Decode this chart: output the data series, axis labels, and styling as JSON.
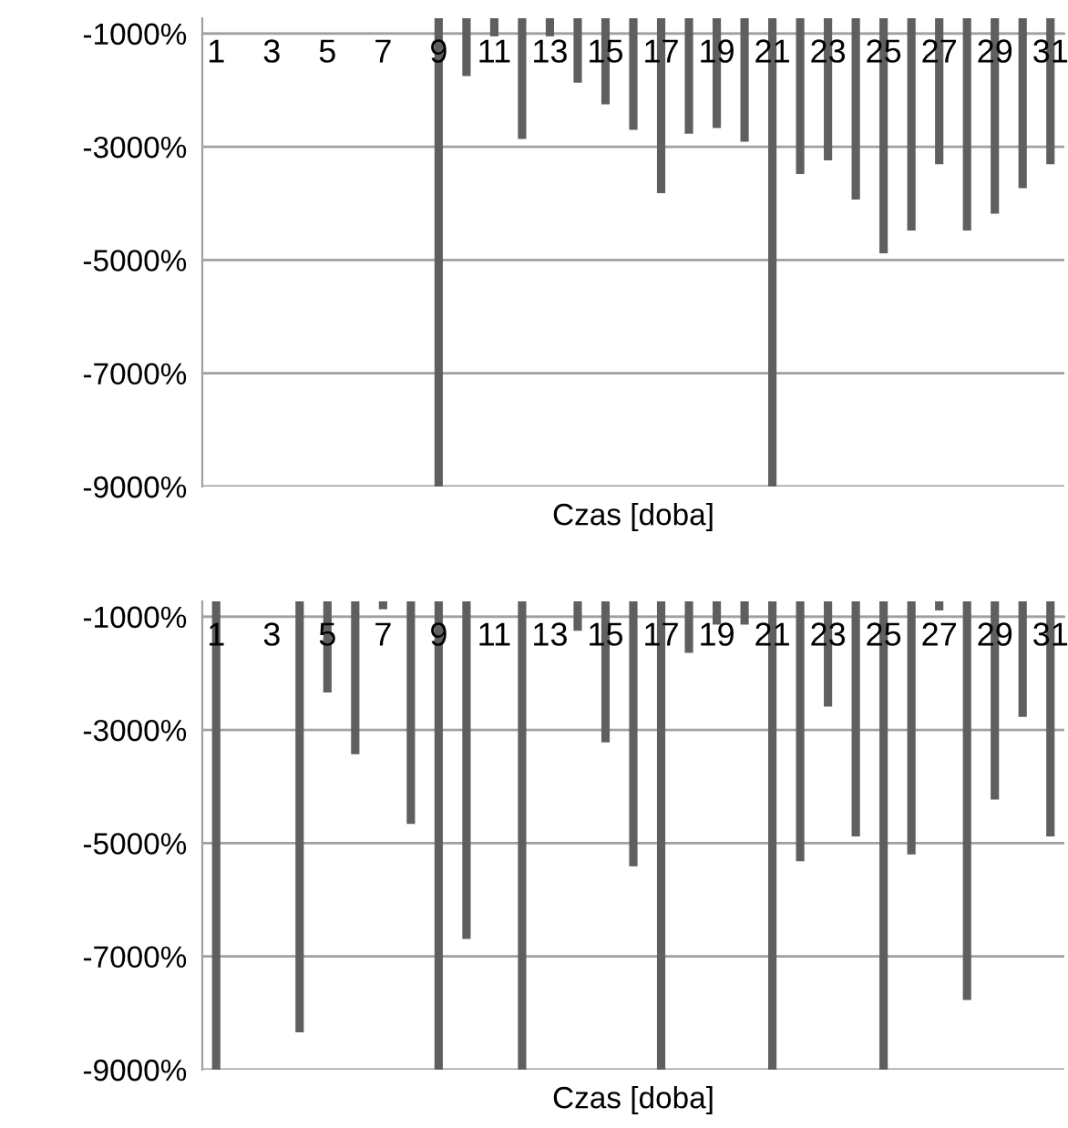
{
  "chart_data": [
    {
      "type": "bar",
      "xlabel": "Czas [doba]",
      "categories": [
        "1",
        null,
        "3",
        null,
        "5",
        null,
        "7",
        null,
        "9",
        null,
        "11",
        null,
        "13",
        null,
        "15",
        null,
        "17",
        null,
        "19",
        null,
        "21",
        null,
        "23",
        null,
        "25",
        null,
        "27",
        null,
        "29",
        null,
        "31"
      ],
      "series": [
        {
          "color": "#5f5f5f",
          "values": [
            null,
            null,
            null,
            null,
            null,
            null,
            null,
            null,
            -9000,
            -1750,
            -1050,
            -2860,
            -1050,
            -1870,
            -2250,
            -2700,
            -3820,
            -2770,
            -2670,
            -2910,
            -9000,
            -3480,
            -3240,
            -3930,
            -4880,
            -4480,
            -3310,
            -4480,
            -4180,
            -3730,
            -3310
          ]
        }
      ],
      "ylim": [
        -9000,
        -730
      ],
      "yticks": [
        {
          "value": -1000,
          "label": "-1000%"
        },
        {
          "value": -3000,
          "label": "-3000%"
        },
        {
          "value": -5000,
          "label": "-5000%"
        },
        {
          "value": -7000,
          "label": "-7000%"
        },
        {
          "value": -9000,
          "label": "-9000%"
        }
      ],
      "grid": "y"
    },
    {
      "type": "bar",
      "xlabel": "Czas [doba]",
      "categories": [
        "1",
        null,
        "3",
        null,
        "5",
        null,
        "7",
        null,
        "9",
        null,
        "11",
        null,
        "13",
        null,
        "15",
        null,
        "17",
        null,
        "19",
        null,
        "21",
        null,
        "23",
        null,
        "25",
        null,
        "27",
        null,
        "29",
        null,
        "31"
      ],
      "series": [
        {
          "color": "#5f5f5f",
          "values": [
            -9000,
            null,
            null,
            -8340,
            -2340,
            -3430,
            -870,
            -4660,
            -9000,
            -6690,
            null,
            -9000,
            null,
            -1250,
            -3220,
            -5410,
            -9000,
            -1640,
            -1140,
            -1140,
            -9000,
            -5320,
            -2590,
            -4880,
            -9000,
            -5200,
            -890,
            -7770,
            -4230,
            -2770,
            -4880
          ]
        }
      ],
      "ylim": [
        -9000,
        -730
      ],
      "yticks": [
        {
          "value": -1000,
          "label": "-1000%"
        },
        {
          "value": -3000,
          "label": "-3000%"
        },
        {
          "value": -5000,
          "label": "-5000%"
        },
        {
          "value": -7000,
          "label": "-7000%"
        },
        {
          "value": -9000,
          "label": "-9000%"
        }
      ],
      "grid": "y"
    }
  ]
}
